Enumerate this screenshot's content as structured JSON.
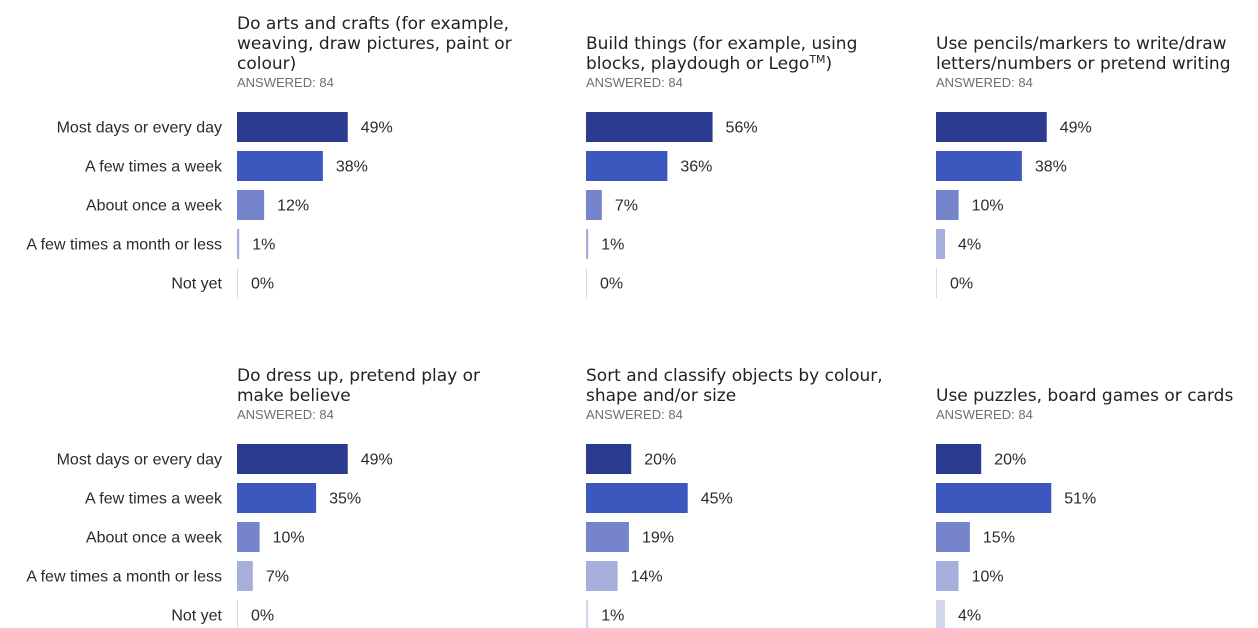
{
  "chart_data": {
    "type": "bar",
    "orientation": "horizontal",
    "categories": [
      "Most days or every day",
      "A few times a week",
      "About once a week",
      "A few times a month or less",
      "Not yet"
    ],
    "colors": [
      "#2b3b8f",
      "#3c57bd",
      "#7684cc",
      "#a7b0dc",
      "#d3d7ee"
    ],
    "panels": [
      {
        "title_lines": [
          "Do arts and crafts (for example,",
          "weaving, draw pictures, paint or",
          "colour)"
        ],
        "answered": "ANSWERED: 84",
        "values": [
          49,
          38,
          12,
          1,
          0
        ]
      },
      {
        "title_lines": [
          "Build things (for example, using",
          "blocks, playdough or Lego"
        ],
        "title_superscript": "TM",
        "title_suffix": ")",
        "answered": "ANSWERED: 84",
        "values": [
          56,
          36,
          7,
          1,
          0
        ]
      },
      {
        "title_lines": [
          "Use pencils/markers to write/draw",
          "letters/numbers or pretend writing"
        ],
        "answered": "ANSWERED: 84",
        "values": [
          49,
          38,
          10,
          4,
          0
        ]
      },
      {
        "title_lines": [
          "Do dress up, pretend play or",
          "make believe"
        ],
        "answered": "ANSWERED: 84",
        "values": [
          49,
          35,
          10,
          7,
          0
        ]
      },
      {
        "title_lines": [
          "Sort and classify objects by colour,",
          "shape and/or size"
        ],
        "answered": "ANSWERED: 84",
        "values": [
          20,
          45,
          19,
          14,
          1
        ]
      },
      {
        "title_lines": [
          "Use puzzles, board games or cards"
        ],
        "answered": "ANSWERED: 84",
        "values": [
          20,
          51,
          15,
          10,
          4
        ]
      }
    ],
    "value_suffix": "%",
    "xlim": [
      0,
      100
    ]
  }
}
